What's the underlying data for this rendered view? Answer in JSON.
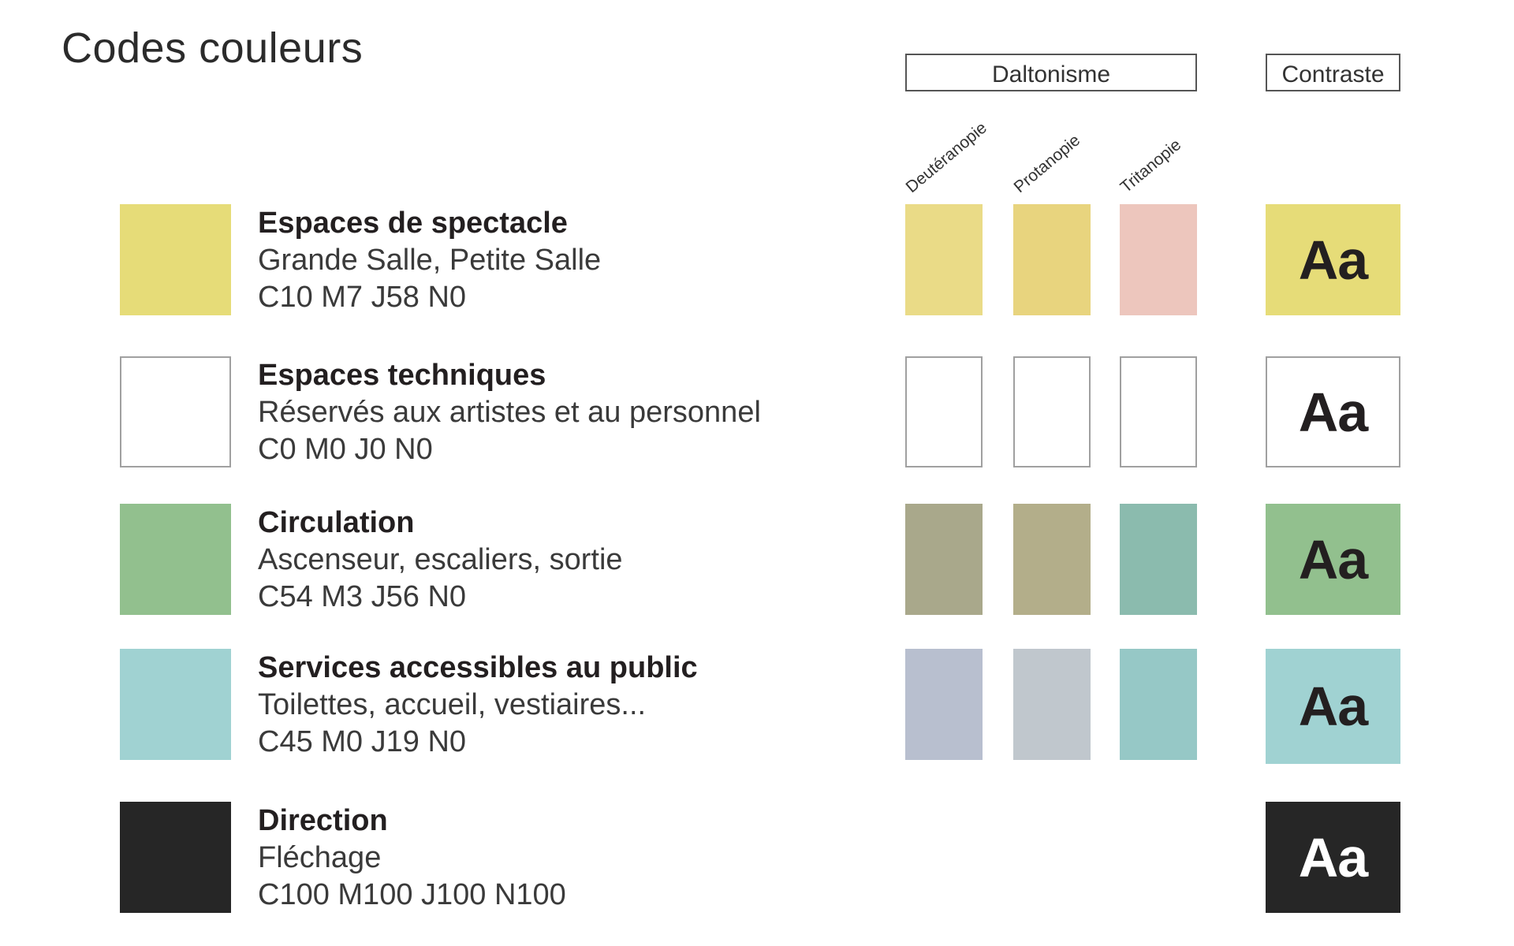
{
  "title": "Codes couleurs",
  "groups": {
    "daltonisme": "Daltonisme",
    "contraste": "Contraste"
  },
  "columns": [
    "Deutéranopie",
    "Protanopie",
    "Tritanopie"
  ],
  "contrast_sample": "Aa",
  "rows": [
    {
      "name": "Espaces de spectacle",
      "desc": "Grande Salle, Petite Salle",
      "code": "C10 M7 J58 N0",
      "color": "#e6dc78",
      "sims": [
        "#eadb87",
        "#e8d47e",
        "#edc6bd"
      ],
      "outlined": false,
      "text_light": false
    },
    {
      "name": "Espaces techniques",
      "desc": "Réservés aux artistes et au personnel",
      "code": "C0 M0 J0 N0",
      "color": "#ffffff",
      "sims": [
        "#ffffff",
        "#ffffff",
        "#ffffff"
      ],
      "outlined": true,
      "text_light": false
    },
    {
      "name": "Circulation",
      "desc": "Ascenseur, escaliers, sortie",
      "code": "C54 M3 J56 N0",
      "color": "#92c08e",
      "sims": [
        "#a9a88b",
        "#b3ae8a",
        "#8bbbae"
      ],
      "outlined": false,
      "text_light": false
    },
    {
      "name": "Services accessibles au public",
      "desc": "Toilettes, accueil, vestiaires...",
      "code": "C45 M0 J19 N0",
      "color": "#a0d2d2",
      "sims": [
        "#b8bfcf",
        "#c0c7cd",
        "#96c8c6"
      ],
      "outlined": false,
      "text_light": false
    },
    {
      "name": "Direction",
      "desc": "Fléchage",
      "code": "C100 M100 J100 N100",
      "color": "#262626",
      "sims": [],
      "outlined": false,
      "text_light": true
    }
  ]
}
